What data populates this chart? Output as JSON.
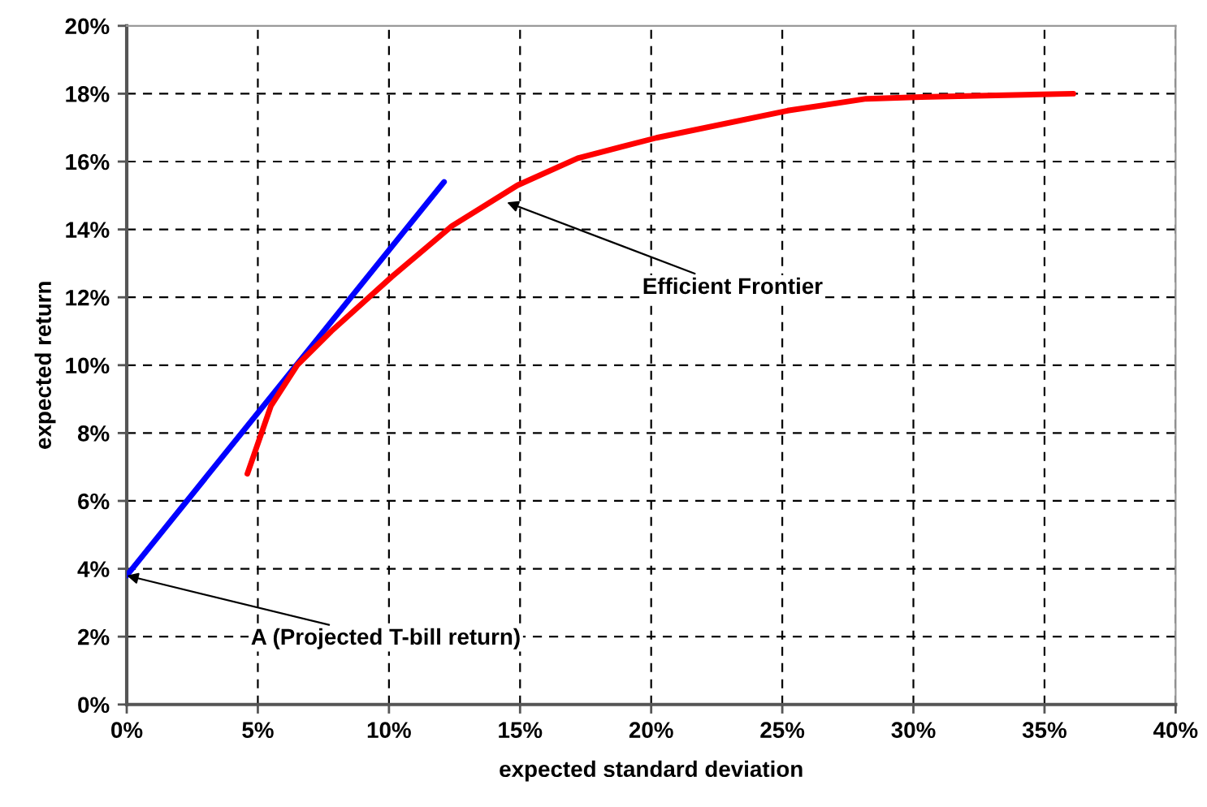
{
  "chart_data": {
    "type": "line",
    "xlabel": "expected standard deviation",
    "ylabel": "expected return",
    "series": [
      {
        "color": "#0000ff",
        "x": [
          0,
          12.1
        ],
        "values": [
          3.8,
          15.4
        ]
      },
      {
        "color": "#ff0000",
        "x": [
          4.6,
          5.5,
          6.5,
          7.8,
          10.1,
          12.4,
          14.9,
          17.2,
          20.2,
          25.2,
          28.2,
          30.3,
          36.1
        ],
        "values": [
          6.8,
          8.8,
          10.0,
          11.0,
          12.6,
          14.1,
          15.3,
          16.1,
          16.7,
          17.5,
          17.85,
          17.9,
          18.0
        ]
      }
    ],
    "annotations": [
      {
        "text": "Efficient Frontier",
        "x": 14.5,
        "y": 14.8
      },
      {
        "text": "A (Projected T-bill return)",
        "x": 0,
        "y": 3.8
      }
    ],
    "xlim": [
      0,
      40
    ],
    "ylim": [
      0,
      20
    ],
    "xticks": [
      {
        "value": 0,
        "label": "0%"
      },
      {
        "value": 5,
        "label": "5%"
      },
      {
        "value": 10,
        "label": "10%"
      },
      {
        "value": 15,
        "label": "15%"
      },
      {
        "value": 20,
        "label": "20%"
      },
      {
        "value": 25,
        "label": "25%"
      },
      {
        "value": 30,
        "label": "30%"
      },
      {
        "value": 35,
        "label": "35%"
      },
      {
        "value": 40,
        "label": "40%"
      }
    ],
    "yticks": [
      {
        "value": 0,
        "label": "0%"
      },
      {
        "value": 2,
        "label": "2%"
      },
      {
        "value": 4,
        "label": "4%"
      },
      {
        "value": 6,
        "label": "6%"
      },
      {
        "value": 8,
        "label": "8%"
      },
      {
        "value": 10,
        "label": "10%"
      },
      {
        "value": 12,
        "label": "12%"
      },
      {
        "value": 14,
        "label": "14%"
      },
      {
        "value": 16,
        "label": "16%"
      },
      {
        "value": 18,
        "label": "18%"
      },
      {
        "value": 20,
        "label": "20%"
      }
    ],
    "grid": true,
    "line_style": "solid",
    "marker": "none"
  }
}
